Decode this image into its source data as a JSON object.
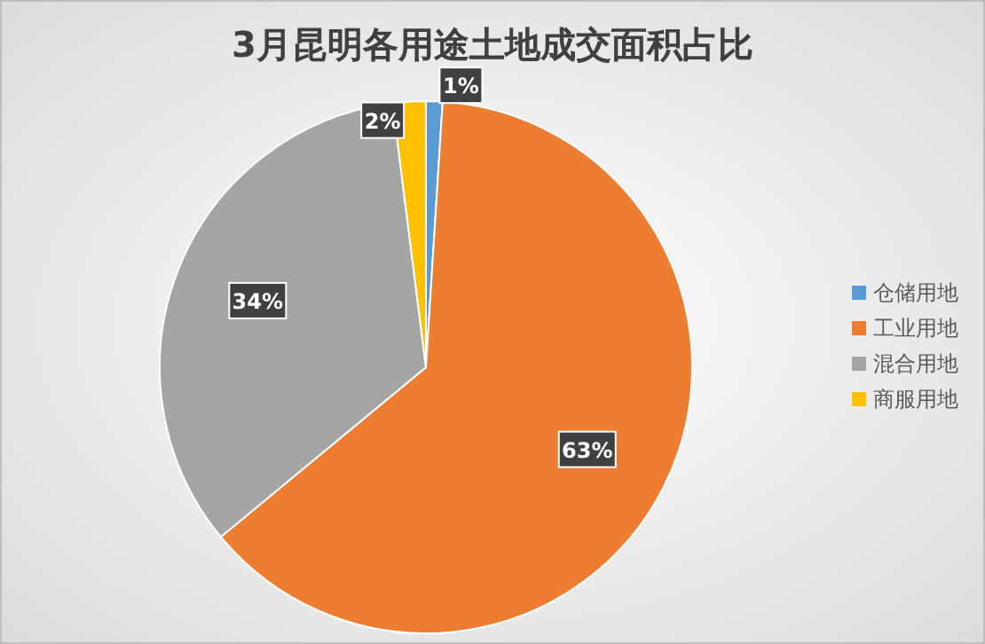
{
  "chart_data": {
    "type": "pie",
    "title": "3月昆明各用途土地成交面积占比",
    "categories": [
      "仓储用地",
      "工业用地",
      "混合用地",
      "商服用地"
    ],
    "values": [
      1,
      63,
      34,
      2
    ],
    "colors": [
      "#5b9bd5",
      "#ed7d31",
      "#a5a5a5",
      "#ffc000"
    ],
    "value_labels": [
      "1%",
      "63%",
      "34%",
      "2%"
    ],
    "legend": "right"
  }
}
